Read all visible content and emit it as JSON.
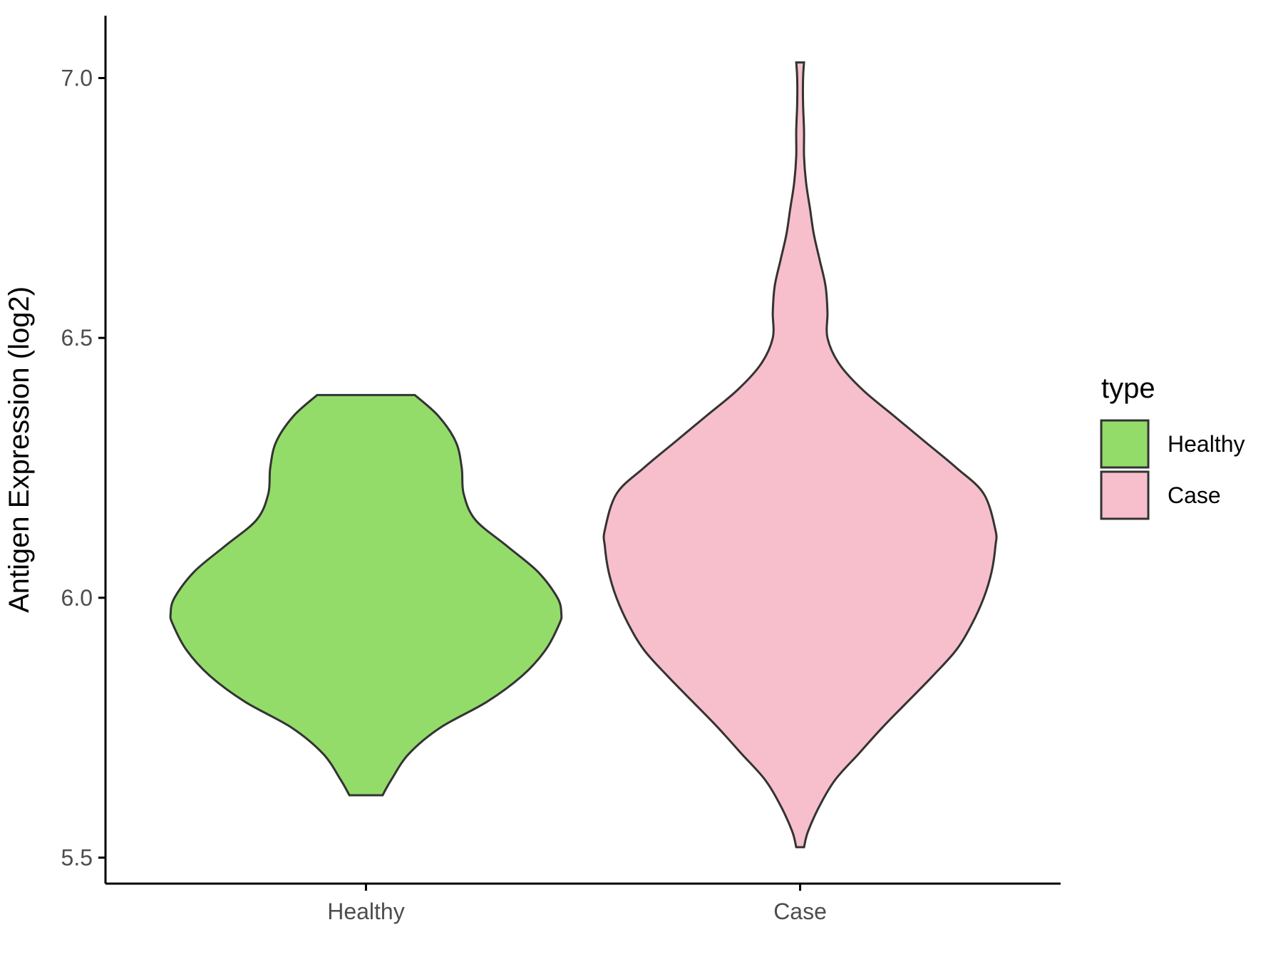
{
  "chart_data": {
    "type": "violin",
    "title": "",
    "xlabel": "",
    "ylabel": "Antigen Expression (log2)",
    "ylim": [
      5.45,
      7.12
    ],
    "yticks": [
      "5.5",
      "6.0",
      "6.5",
      "7.0"
    ],
    "ytick_values": [
      5.5,
      6.0,
      6.5,
      7.0
    ],
    "categories": [
      "Healthy",
      "Case"
    ],
    "grid": false,
    "legend": {
      "title": "type",
      "placement": "right",
      "entries": [
        "Healthy",
        "Case"
      ]
    },
    "colors": {
      "Healthy": "#93dc6a",
      "Case": "#f7bfcb",
      "outline": "#333333"
    },
    "series": [
      {
        "name": "Healthy",
        "min": 5.62,
        "max": 6.39,
        "density_profile": [
          [
            5.62,
            0.085
          ],
          [
            5.65,
            0.13
          ],
          [
            5.7,
            0.22
          ],
          [
            5.75,
            0.38
          ],
          [
            5.8,
            0.62
          ],
          [
            5.85,
            0.8
          ],
          [
            5.9,
            0.92
          ],
          [
            5.95,
            0.99
          ],
          [
            5.97,
            1.0
          ],
          [
            6.0,
            0.98
          ],
          [
            6.05,
            0.88
          ],
          [
            6.1,
            0.72
          ],
          [
            6.15,
            0.56
          ],
          [
            6.2,
            0.5
          ],
          [
            6.25,
            0.49
          ],
          [
            6.3,
            0.46
          ],
          [
            6.35,
            0.37
          ],
          [
            6.39,
            0.25
          ]
        ]
      },
      {
        "name": "Case",
        "min": 5.52,
        "max": 7.03,
        "density_profile": [
          [
            5.52,
            0.02
          ],
          [
            5.55,
            0.04
          ],
          [
            5.6,
            0.1
          ],
          [
            5.65,
            0.18
          ],
          [
            5.7,
            0.3
          ],
          [
            5.75,
            0.42
          ],
          [
            5.8,
            0.55
          ],
          [
            5.85,
            0.68
          ],
          [
            5.9,
            0.8
          ],
          [
            5.95,
            0.88
          ],
          [
            6.0,
            0.94
          ],
          [
            6.05,
            0.98
          ],
          [
            6.1,
            1.0
          ],
          [
            6.13,
            1.0
          ],
          [
            6.2,
            0.94
          ],
          [
            6.25,
            0.8
          ],
          [
            6.3,
            0.64
          ],
          [
            6.35,
            0.48
          ],
          [
            6.4,
            0.32
          ],
          [
            6.45,
            0.2
          ],
          [
            6.5,
            0.14
          ],
          [
            6.55,
            0.14
          ],
          [
            6.6,
            0.13
          ],
          [
            6.65,
            0.1
          ],
          [
            6.7,
            0.07
          ],
          [
            6.75,
            0.05
          ],
          [
            6.8,
            0.03
          ],
          [
            6.85,
            0.02
          ],
          [
            6.9,
            0.02
          ],
          [
            6.95,
            0.015
          ],
          [
            7.0,
            0.015
          ],
          [
            7.03,
            0.02
          ]
        ]
      }
    ]
  }
}
